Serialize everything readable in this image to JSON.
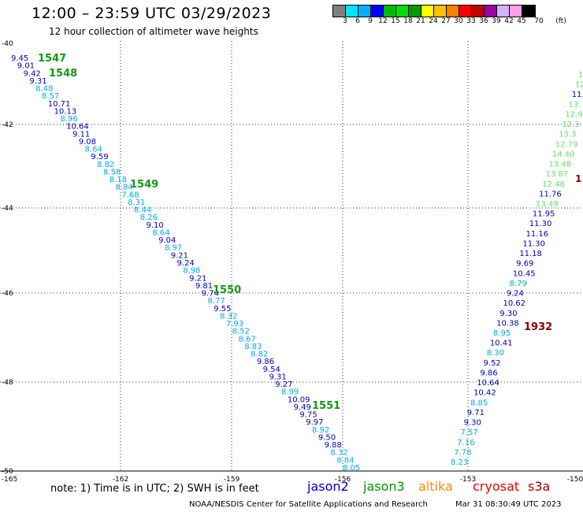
{
  "header": {
    "title": "12:00 – 23:59 UTC 03/29/2023",
    "subtitle": "12 hour collection of altimeter wave heights"
  },
  "colorbar": {
    "colors": [
      "#808080",
      "#00e5ff",
      "#00b0ff",
      "#0000ff",
      "#00bb00",
      "#00dd00",
      "#009900",
      "#ffff00",
      "#ffc000",
      "#ff8000",
      "#ff0000",
      "#c00000",
      "#a000a0",
      "#d4b0ff",
      "#ff9ee8",
      "#000000"
    ],
    "labels": [
      "3",
      "6",
      "9",
      "12",
      "15",
      "18",
      "21",
      "24",
      "27",
      "30",
      "33",
      "36",
      "39",
      "42",
      "45",
      "70",
      "(ft)"
    ]
  },
  "axes": {
    "lat_labels": [
      "-40",
      "-42",
      "-44",
      "-46",
      "-48",
      "-50"
    ],
    "lon_labels": [
      "-165",
      "-162",
      "-159",
      "-156",
      "-153",
      "-150"
    ]
  },
  "palette": {
    "jason2": "#0000bb",
    "jason3": "#009900",
    "altika": "#ff8c00",
    "cryosat": "#ee0000",
    "s3a": "#990000",
    "cyan": "#00aaee",
    "lightgreen": "#66e066",
    "darkred": "#880000"
  },
  "passes": [
    {
      "label": "1547",
      "color": "#119911"
    },
    {
      "label": "1548",
      "color": "#119911"
    },
    {
      "label": "1549",
      "color": "#119911"
    },
    {
      "label": "1550",
      "color": "#119911"
    },
    {
      "label": "1551",
      "color": "#119911"
    },
    {
      "label": "1932",
      "color": "#880000"
    }
  ],
  "track_left": [
    [
      "9.45",
      "#0000bb"
    ],
    [
      "9.01",
      "#0000bb"
    ],
    [
      "9.42",
      "#0000bb"
    ],
    [
      "9.31",
      "#0000bb"
    ],
    [
      "8.48",
      "#00aaee"
    ],
    [
      "8.57",
      "#00aaee"
    ],
    [
      "10.71",
      "#0000bb"
    ],
    [
      "10.13",
      "#0000bb"
    ],
    [
      "8.96",
      "#00aaee"
    ],
    [
      "10.64",
      "#0000bb"
    ],
    [
      "9.11",
      "#0000bb"
    ],
    [
      "9.08",
      "#0000bb"
    ],
    [
      "8.64",
      "#00aaee"
    ],
    [
      "9.59",
      "#0000bb"
    ],
    [
      "8.82",
      "#00aaee"
    ],
    [
      "8.58",
      "#00aaee"
    ],
    [
      "8.18",
      "#00aaee"
    ],
    [
      "8.84",
      "#00aaee"
    ],
    [
      "7.68",
      "#00aaee"
    ],
    [
      "8.31",
      "#00aaee"
    ],
    [
      "8.44",
      "#00aaee"
    ],
    [
      "8.26",
      "#00aaee"
    ],
    [
      "9.10",
      "#0000bb"
    ],
    [
      "8.64",
      "#00aaee"
    ],
    [
      "9.04",
      "#0000bb"
    ],
    [
      "8.97",
      "#00aaee"
    ],
    [
      "9.21",
      "#0000bb"
    ],
    [
      "9.24",
      "#0000bb"
    ],
    [
      "8.98",
      "#00aaee"
    ],
    [
      "9.21",
      "#0000bb"
    ],
    [
      "9.81",
      "#0000bb"
    ],
    [
      "9.74",
      "#0000bb"
    ],
    [
      "8.77",
      "#00aaee"
    ],
    [
      "9.55",
      "#0000bb"
    ],
    [
      "8.32",
      "#00aaee"
    ],
    [
      "7.93",
      "#00aaee"
    ],
    [
      "8.52",
      "#00aaee"
    ],
    [
      "8.67",
      "#00aaee"
    ],
    [
      "8.83",
      "#00aaee"
    ],
    [
      "8.82",
      "#00aaee"
    ],
    [
      "9.86",
      "#0000bb"
    ],
    [
      "9.54",
      "#0000bb"
    ],
    [
      "9.31",
      "#0000bb"
    ],
    [
      "9.27",
      "#0000bb"
    ],
    [
      "8.99",
      "#00aaee"
    ],
    [
      "10.09",
      "#0000bb"
    ],
    [
      "9.49",
      "#0000bb"
    ],
    [
      "9.75",
      "#0000bb"
    ],
    [
      "9.97",
      "#0000bb"
    ],
    [
      "8.92",
      "#00aaee"
    ],
    [
      "9.50",
      "#0000bb"
    ],
    [
      "9.88",
      "#0000bb"
    ],
    [
      "8.32",
      "#00aaee"
    ],
    [
      "8.84",
      "#00aaee"
    ],
    [
      "8.05",
      "#00aaee"
    ]
  ],
  "track_right": [
    [
      "13.",
      "#66e066"
    ],
    [
      "12.",
      "#66e066"
    ],
    [
      "11.",
      "#0000bb"
    ],
    [
      "13.",
      "#66e066"
    ],
    [
      "12.9",
      "#66e066"
    ],
    [
      "12.3",
      "#66e066"
    ],
    [
      "13.3",
      "#66e066"
    ],
    [
      "12.79",
      "#66e066"
    ],
    [
      "14.40",
      "#66e066"
    ],
    [
      "13.48",
      "#66e066"
    ],
    [
      "13.87",
      "#66e066"
    ],
    [
      "12.46",
      "#66e066"
    ],
    [
      "11.76",
      "#0000bb"
    ],
    [
      "13.49",
      "#66e066"
    ],
    [
      "11.95",
      "#0000bb"
    ],
    [
      "11.30",
      "#0000bb"
    ],
    [
      "11.16",
      "#0000bb"
    ],
    [
      "11.30",
      "#0000bb"
    ],
    [
      "11.18",
      "#0000bb"
    ],
    [
      "9.69",
      "#0000bb"
    ],
    [
      "10.45",
      "#0000bb"
    ],
    [
      "8.79",
      "#00aaee"
    ],
    [
      "9.24",
      "#0000bb"
    ],
    [
      "10.62",
      "#0000bb"
    ],
    [
      "9.30",
      "#0000bb"
    ],
    [
      "10.38",
      "#0000bb"
    ],
    [
      "8.95",
      "#00aaee"
    ],
    [
      "10.41",
      "#0000bb"
    ],
    [
      "8.30",
      "#00aaee"
    ],
    [
      "9.52",
      "#0000bb"
    ],
    [
      "9.86",
      "#0000bb"
    ],
    [
      "10.64",
      "#0000bb"
    ],
    [
      "10.42",
      "#0000bb"
    ],
    [
      "8.85",
      "#00aaee"
    ],
    [
      "9.71",
      "#0000bb"
    ],
    [
      "9.30",
      "#0000bb"
    ],
    [
      "7.57",
      "#00aaee"
    ],
    [
      "7.16",
      "#00aaee"
    ],
    [
      "7.78",
      "#00aaee"
    ],
    [
      "8.23",
      "#00aaee"
    ]
  ],
  "edge_label": "1",
  "bottom": {
    "note": "note:  1) Time is in UTC;  2) SWH is in feet",
    "legend": [
      {
        "name": "jason2",
        "color": "#0000cc"
      },
      {
        "name": "jason3",
        "color": "#009900"
      },
      {
        "name": "altika",
        "color": "#ff8c00"
      },
      {
        "name": "cryosat",
        "color": "#ee0000"
      },
      {
        "name": "s3a",
        "color": "#990000"
      }
    ],
    "credit": "NOAA/NESDIS Center for Satellite Applications and Research",
    "timestamp": "Mar 31 08:30:49 UTC 2023"
  }
}
